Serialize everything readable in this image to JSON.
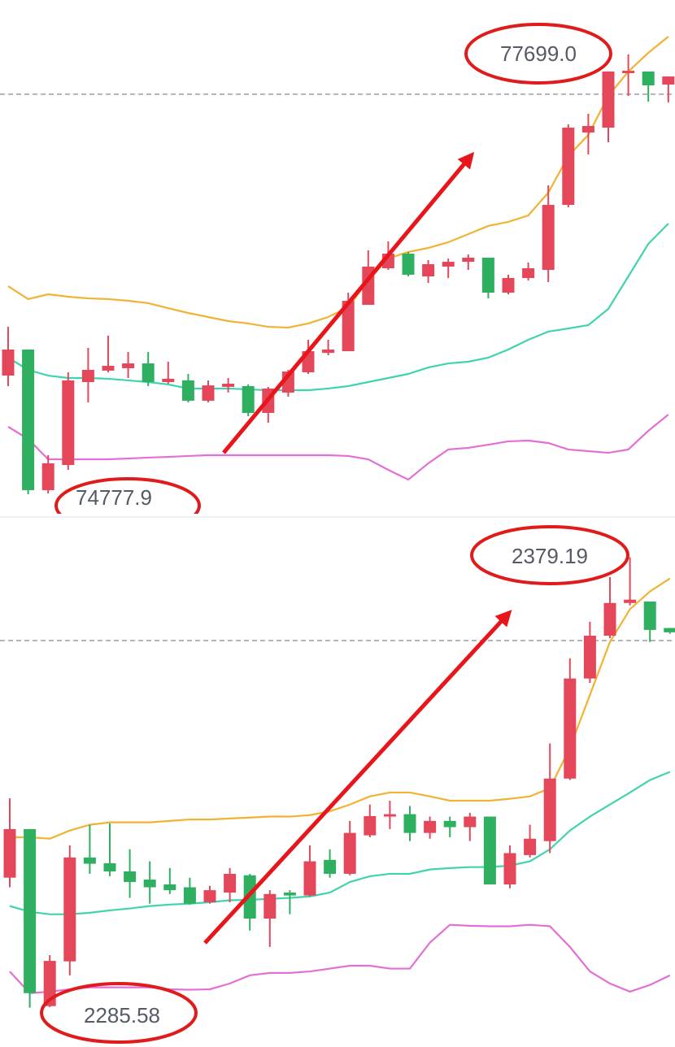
{
  "chart_data": [
    {
      "type": "candlestick",
      "ylim": [
        74632,
        78061
      ],
      "up_color": "#e5475a",
      "down_color": "#2fb060",
      "open": [
        75566,
        75739,
        74805,
        74972,
        75523,
        75599,
        75615,
        75647,
        75523,
        75534,
        75399,
        75491,
        75496,
        75318,
        75453,
        75588,
        75717,
        75728,
        76036,
        76279,
        76376,
        76225,
        76290,
        76322,
        76349,
        76117,
        76214,
        76268,
        76700,
        77181,
        77213,
        77575,
        77586,
        77499
      ],
      "high": [
        75890,
        75739,
        75037,
        75588,
        75750,
        75831,
        75723,
        75723,
        75658,
        75577,
        75534,
        75550,
        75507,
        75491,
        75604,
        75804,
        75804,
        76117,
        76398,
        76457,
        76387,
        76333,
        76344,
        76371,
        76349,
        76236,
        76317,
        76830,
        77235,
        77305,
        77586,
        77699,
        77586,
        77553
      ],
      "low": [
        75496,
        74777.9,
        74783,
        74940,
        75388,
        75588,
        75550,
        75496,
        75512,
        75388,
        75388,
        75453,
        75296,
        75253,
        75426,
        75577,
        75701,
        75728,
        76036,
        76268,
        76225,
        76182,
        76214,
        76268,
        76079,
        76106,
        76198,
        76187,
        76684,
        77035,
        77116,
        77424,
        77386,
        77381
      ],
      "close": [
        75739,
        74805,
        74983,
        75534,
        75604,
        75631,
        75647,
        75523,
        75545,
        75399,
        75501,
        75512,
        75318,
        75480,
        75593,
        75728,
        75739,
        76063,
        76290,
        76376,
        76236,
        76306,
        76322,
        76349,
        76117,
        76214,
        76279,
        76700,
        77213,
        77224,
        77586,
        77591,
        77494,
        77553
      ],
      "series": [
        {
          "color": "#f2b233",
          "values": [
            76160,
            76074,
            76106,
            76090,
            76079,
            76074,
            76063,
            76047,
            76014,
            75982,
            75955,
            75928,
            75912,
            75890,
            75885,
            75912,
            75955,
            76020,
            76198,
            76344,
            76387,
            76414,
            76452,
            76506,
            76560,
            76587,
            76630,
            76781,
            77024,
            77165,
            77424,
            77586,
            77710,
            77818
          ]
        },
        {
          "color": "#3fd3ae",
          "values": [
            75685,
            75604,
            75566,
            75550,
            75550,
            75545,
            75534,
            75523,
            75507,
            75480,
            75480,
            75480,
            75474,
            75469,
            75469,
            75469,
            75480,
            75496,
            75523,
            75550,
            75577,
            75620,
            75647,
            75658,
            75685,
            75739,
            75804,
            75858,
            75879,
            75901,
            76009,
            76225,
            76441,
            76576
          ]
        },
        {
          "color": "#e36fd6",
          "values": [
            75226,
            75145,
            75010,
            75010,
            75010,
            75010,
            75015,
            75021,
            75026,
            75032,
            75037,
            75037,
            75037,
            75037,
            75037,
            75037,
            75037,
            75032,
            75010,
            74940,
            74875,
            74983,
            75075,
            75086,
            75107,
            75129,
            75134,
            75118,
            75075,
            75064,
            75053,
            75075,
            75199,
            75307
          ]
        }
      ],
      "last_price": 77435,
      "annotations": [
        "77699.0",
        "74777.9"
      ]
    },
    {
      "type": "candlestick",
      "ylim": [
        2277.4,
        2386.9
      ],
      "up_color": "#e5475a",
      "down_color": "#2fb060",
      "open": [
        2312.6,
        2322.7,
        2285.9,
        2295.2,
        2316.8,
        2315.6,
        2313.9,
        2312.2,
        2311.2,
        2310.6,
        2307.5,
        2309.5,
        2313.1,
        2304.1,
        2309.5,
        2308.9,
        2316.3,
        2313.4,
        2321.4,
        2325.3,
        2325.8,
        2321.9,
        2324.4,
        2323.1,
        2325.3,
        2311.2,
        2317.3,
        2320.2,
        2333.2,
        2354.0,
        2362.9,
        2369.7,
        2370.0,
        2364.5
      ],
      "high": [
        2329.1,
        2322.7,
        2296.5,
        2319.3,
        2323.6,
        2323.9,
        2318.5,
        2316.0,
        2314.6,
        2312.6,
        2310.9,
        2314.6,
        2313.4,
        2310.0,
        2310.0,
        2319.3,
        2318.5,
        2324.4,
        2327.8,
        2328.6,
        2327.5,
        2325.3,
        2325.3,
        2326.1,
        2325.3,
        2319.3,
        2323.6,
        2340.5,
        2358.2,
        2365.8,
        2375.1,
        2379.19,
        2370.0,
        2364.5
      ],
      "low": [
        2310.6,
        2285.58,
        2285.7,
        2292.3,
        2313.4,
        2312.9,
        2308.4,
        2307.2,
        2309.2,
        2307.0,
        2307.2,
        2307.5,
        2301.6,
        2298.2,
        2305.0,
        2308.7,
        2312.6,
        2313.1,
        2321.0,
        2322.7,
        2320.2,
        2320.7,
        2321.0,
        2320.2,
        2311.2,
        2310.4,
        2316.8,
        2317.7,
        2332.9,
        2353.1,
        2362.4,
        2369.2,
        2361.6,
        2363.3
      ],
      "close": [
        2322.7,
        2288.6,
        2295.3,
        2316.8,
        2315.5,
        2313.9,
        2311.7,
        2310.6,
        2310.0,
        2307.2,
        2310.0,
        2313.4,
        2304.1,
        2309.2,
        2308.9,
        2316.0,
        2313.4,
        2321.9,
        2325.4,
        2325.8,
        2321.9,
        2324.4,
        2323.1,
        2325.3,
        2311.2,
        2317.7,
        2320.7,
        2333.2,
        2354.0,
        2362.9,
        2369.7,
        2370.4,
        2364.1,
        2363.6
      ],
      "series": [
        {
          "color": "#f2b233",
          "values": [
            2321.0,
            2321.0,
            2320.7,
            2322.4,
            2323.6,
            2324.1,
            2324.1,
            2324.1,
            2324.4,
            2324.7,
            2324.7,
            2324.9,
            2325.1,
            2325.3,
            2325.3,
            2325.6,
            2326.4,
            2327.8,
            2329.5,
            2330.3,
            2330.3,
            2329.5,
            2328.6,
            2328.6,
            2328.6,
            2329.0,
            2329.5,
            2331.2,
            2339.6,
            2350.6,
            2361.6,
            2368.4,
            2372.1,
            2374.8
          ]
        },
        {
          "color": "#3fd3ae",
          "values": [
            2306.7,
            2305.5,
            2305.0,
            2305.0,
            2305.3,
            2305.8,
            2306.2,
            2306.7,
            2307.0,
            2307.2,
            2307.5,
            2307.9,
            2308.0,
            2308.2,
            2308.4,
            2308.7,
            2309.5,
            2311.7,
            2312.9,
            2313.4,
            2313.4,
            2314.3,
            2314.6,
            2314.8,
            2314.8,
            2315.1,
            2316.0,
            2318.5,
            2322.4,
            2325.3,
            2327.8,
            2330.3,
            2332.9,
            2334.6
          ]
        },
        {
          "color": "#e36fd6",
          "values": [
            2293.1,
            2288.6,
            2288.9,
            2289.4,
            2289.8,
            2289.8,
            2289.8,
            2289.8,
            2289.4,
            2289.3,
            2289.4,
            2290.6,
            2292.3,
            2292.8,
            2292.8,
            2293.1,
            2293.7,
            2294.3,
            2294.3,
            2293.7,
            2293.7,
            2299.1,
            2302.8,
            2302.6,
            2302.5,
            2302.5,
            2302.8,
            2302.5,
            2298.2,
            2293.1,
            2290.6,
            2288.9,
            2290.3,
            2292.3
          ]
        }
      ],
      "last_price": 2361.9,
      "annotations": [
        "2379.19",
        "2285.58"
      ]
    }
  ]
}
